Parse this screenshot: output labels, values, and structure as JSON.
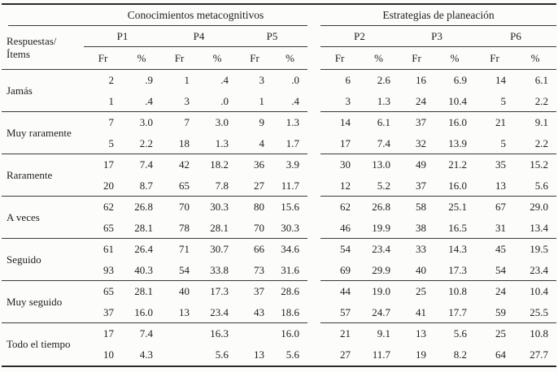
{
  "table": {
    "corner": {
      "line1": "Respuestas/",
      "line2": "Ítems"
    },
    "groups": [
      {
        "title": "Conocimientos metacognitivos",
        "items": [
          "P1",
          "P4",
          "P5"
        ]
      },
      {
        "title": "Estrategias de planeación",
        "items": [
          "P2",
          "P3",
          "P6"
        ]
      }
    ],
    "subheaders": {
      "fr": "Fr",
      "pct": "%"
    },
    "rows": [
      {
        "label": "Jamás",
        "lines": [
          [
            "2",
            ".9",
            "1",
            ".4",
            "3",
            ".0",
            "6",
            "2.6",
            "16",
            "6.9",
            "14",
            "6.1"
          ],
          [
            "1",
            ".4",
            "3",
            ".0",
            "1",
            ".4",
            "3",
            "1.3",
            "24",
            "10.4",
            "5",
            "2.2"
          ]
        ]
      },
      {
        "label": "Muy raramente",
        "lines": [
          [
            "7",
            "3.0",
            "7",
            "3.0",
            "9",
            "1.3",
            "14",
            "6.1",
            "37",
            "16.0",
            "21",
            "9.1"
          ],
          [
            "5",
            "2.2",
            "18",
            "1.3",
            "4",
            "1.7",
            "17",
            "7.4",
            "32",
            "13.9",
            "5",
            "2.2"
          ]
        ]
      },
      {
        "label": "Raramente",
        "lines": [
          [
            "17",
            "7.4",
            "42",
            "18.2",
            "36",
            "3.9",
            "30",
            "13.0",
            "49",
            "21.2",
            "35",
            "15.2"
          ],
          [
            "20",
            "8.7",
            "65",
            "7.8",
            "27",
            "11.7",
            "12",
            "5.2",
            "37",
            "16.0",
            "13",
            "5.6"
          ]
        ]
      },
      {
        "label": "A veces",
        "lines": [
          [
            "62",
            "26.8",
            "70",
            "30.3",
            "80",
            "15.6",
            "62",
            "26.8",
            "58",
            "25.1",
            "67",
            "29.0"
          ],
          [
            "65",
            "28.1",
            "78",
            "28.1",
            "70",
            "30.3",
            "46",
            "19.9",
            "38",
            "16.5",
            "31",
            "13.4"
          ]
        ]
      },
      {
        "label": "Seguido",
        "lines": [
          [
            "61",
            "26.4",
            "71",
            "30.7",
            "66",
            "34.6",
            "54",
            "23.4",
            "33",
            "14.3",
            "45",
            "19.5"
          ],
          [
            "93",
            "40.3",
            "54",
            "33.8",
            "73",
            "31.6",
            "69",
            "29.9",
            "40",
            "17.3",
            "54",
            "23.4"
          ]
        ]
      },
      {
        "label": "Muy seguido",
        "lines": [
          [
            "65",
            "28.1",
            "40",
            "17.3",
            "37",
            "28.6",
            "44",
            "19.0",
            "25",
            "10.8",
            "24",
            "10.4"
          ],
          [
            "37",
            "16.0",
            "13",
            "23.4",
            "43",
            "18.6",
            "57",
            "24.7",
            "41",
            "17.7",
            "59",
            "25.5"
          ]
        ]
      },
      {
        "label": "Todo el tiempo",
        "lines": [
          [
            "17",
            "7.4",
            "",
            "16.3",
            "",
            "16.0",
            "21",
            "9.1",
            "13",
            "5.6",
            "25",
            "10.8"
          ],
          [
            "10",
            "4.3",
            "",
            "5.6",
            "13",
            "5.6",
            "27",
            "11.7",
            "19",
            "8.2",
            "64",
            "27.7"
          ]
        ]
      }
    ],
    "colors": {
      "rule": "#2a2a2a",
      "text": "#1e1e1e",
      "background": "#fcfcfb"
    }
  }
}
